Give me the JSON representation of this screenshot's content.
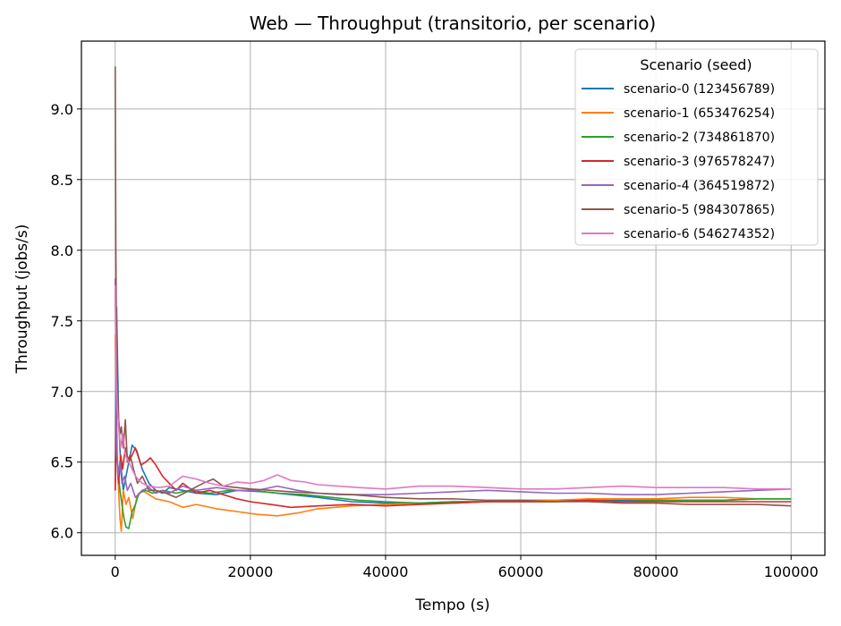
{
  "chart_data": {
    "type": "line",
    "title": "Web — Throughput (transitorio, per scenario)",
    "xlabel": "Tempo (s)",
    "ylabel": "Throughput (jobs/s)",
    "xlim": [
      -5000,
      105000
    ],
    "ylim": [
      5.84,
      9.48
    ],
    "xticks": [
      0,
      20000,
      40000,
      60000,
      80000,
      100000
    ],
    "yticks": [
      6.0,
      6.5,
      7.0,
      7.5,
      8.0,
      8.5,
      9.0
    ],
    "grid": true,
    "legend": {
      "title": "Scenario (seed)",
      "placement": "top-right"
    },
    "series": [
      {
        "name": "scenario-0 (123456789)",
        "color": "#1f77b4",
        "x": [
          0,
          200,
          500,
          800,
          1200,
          1800,
          2500,
          3200,
          4000,
          5000,
          6000,
          7000,
          8000,
          10000,
          12000,
          15000,
          18000,
          22000,
          26000,
          30000,
          35000,
          40000,
          45000,
          50000,
          55000,
          60000,
          65000,
          70000,
          75000,
          80000,
          85000,
          90000,
          95000,
          100000
        ],
        "y": [
          6.3,
          7.6,
          6.8,
          6.5,
          6.3,
          6.45,
          6.62,
          6.58,
          6.45,
          6.35,
          6.3,
          6.28,
          6.32,
          6.3,
          6.28,
          6.27,
          6.3,
          6.29,
          6.27,
          6.25,
          6.22,
          6.21,
          6.21,
          6.22,
          6.22,
          6.23,
          6.23,
          6.23,
          6.23,
          6.23,
          6.23,
          6.23,
          6.24,
          6.24
        ]
      },
      {
        "name": "scenario-1 (653476254)",
        "color": "#ff7f0e",
        "x": [
          0,
          150,
          300,
          500,
          700,
          900,
          1200,
          1600,
          2000,
          2600,
          3200,
          4000,
          5000,
          6000,
          8000,
          10000,
          12000,
          15000,
          18000,
          21000,
          24000,
          27000,
          30000,
          35000,
          40000,
          45000,
          50000,
          55000,
          60000,
          65000,
          70000,
          75000,
          80000,
          85000,
          90000,
          95000,
          100000
        ],
        "y": [
          7.4,
          7.0,
          6.5,
          6.3,
          6.1,
          6.01,
          6.3,
          6.2,
          6.25,
          6.1,
          6.25,
          6.3,
          6.27,
          6.24,
          6.22,
          6.18,
          6.2,
          6.17,
          6.15,
          6.13,
          6.12,
          6.14,
          6.17,
          6.19,
          6.2,
          6.21,
          6.21,
          6.22,
          6.23,
          6.23,
          6.24,
          6.24,
          6.24,
          6.25,
          6.25,
          6.24,
          6.24
        ]
      },
      {
        "name": "scenario-2 (734861870)",
        "color": "#2ca02c",
        "x": [
          0,
          200,
          400,
          700,
          1000,
          1300,
          1600,
          2000,
          2500,
          3000,
          3500,
          4500,
          5500,
          7000,
          9000,
          11000,
          14000,
          17000,
          20000,
          24000,
          28000,
          32000,
          36000,
          40000,
          45000,
          50000,
          55000,
          60000,
          65000,
          70000,
          75000,
          80000,
          85000,
          90000,
          95000,
          100000
        ],
        "y": [
          6.5,
          6.6,
          6.45,
          6.3,
          6.2,
          6.1,
          6.04,
          6.03,
          6.15,
          6.2,
          6.28,
          6.3,
          6.28,
          6.3,
          6.28,
          6.3,
          6.28,
          6.3,
          6.3,
          6.28,
          6.27,
          6.25,
          6.23,
          6.22,
          6.21,
          6.22,
          6.22,
          6.22,
          6.22,
          6.23,
          6.22,
          6.23,
          6.23,
          6.23,
          6.24,
          6.24
        ]
      },
      {
        "name": "scenario-3 (976578247)",
        "color": "#d62728",
        "x": [
          0,
          150,
          300,
          500,
          800,
          1100,
          1500,
          2000,
          2500,
          3000,
          3800,
          4500,
          5200,
          6000,
          7000,
          8000,
          9000,
          10000,
          12000,
          14000,
          16000,
          18000,
          20000,
          23000,
          26000,
          30000,
          35000,
          40000,
          45000,
          50000,
          55000,
          60000,
          65000,
          70000,
          75000,
          80000,
          85000,
          90000,
          95000,
          100000
        ],
        "y": [
          6.3,
          6.9,
          6.5,
          6.35,
          6.55,
          6.45,
          6.6,
          6.5,
          6.55,
          6.6,
          6.48,
          6.5,
          6.53,
          6.48,
          6.4,
          6.35,
          6.3,
          6.35,
          6.28,
          6.3,
          6.27,
          6.24,
          6.22,
          6.2,
          6.18,
          6.19,
          6.2,
          6.19,
          6.2,
          6.21,
          6.22,
          6.22,
          6.22,
          6.23,
          6.22,
          6.22,
          6.22,
          6.22,
          6.22,
          6.22
        ]
      },
      {
        "name": "scenario-4 (364519872)",
        "color": "#9467bd",
        "x": [
          0,
          200,
          400,
          700,
          1000,
          1400,
          1800,
          2300,
          3000,
          4000,
          5000,
          6000,
          7000,
          8000,
          10000,
          12000,
          15000,
          18000,
          21000,
          24000,
          27000,
          30000,
          33000,
          36000,
          40000,
          45000,
          50000,
          55000,
          60000,
          65000,
          70000,
          75000,
          80000,
          85000,
          90000,
          95000,
          100000
        ],
        "y": [
          7.8,
          6.6,
          6.4,
          6.5,
          6.35,
          6.4,
          6.3,
          6.35,
          6.25,
          6.3,
          6.32,
          6.28,
          6.3,
          6.28,
          6.33,
          6.3,
          6.32,
          6.3,
          6.3,
          6.33,
          6.3,
          6.28,
          6.27,
          6.27,
          6.27,
          6.28,
          6.29,
          6.3,
          6.29,
          6.28,
          6.28,
          6.27,
          6.27,
          6.28,
          6.29,
          6.3,
          6.31
        ]
      },
      {
        "name": "scenario-5 (984307865)",
        "color": "#8c564b",
        "x": [
          0,
          100,
          200,
          350,
          500,
          700,
          900,
          1200,
          1500,
          1800,
          2200,
          2700,
          3300,
          4000,
          5000,
          6000,
          7500,
          9000,
          11000,
          13000,
          14500,
          16000,
          18000,
          20000,
          23000,
          26000,
          30000,
          35000,
          40000,
          45000,
          50000,
          55000,
          60000,
          65000,
          70000,
          75000,
          80000,
          85000,
          90000,
          95000,
          100000
        ],
        "y": [
          9.3,
          8.0,
          7.3,
          7.0,
          6.8,
          6.7,
          6.75,
          6.6,
          6.8,
          6.5,
          6.55,
          6.45,
          6.35,
          6.4,
          6.3,
          6.3,
          6.28,
          6.25,
          6.3,
          6.35,
          6.38,
          6.33,
          6.32,
          6.31,
          6.3,
          6.29,
          6.28,
          6.27,
          6.25,
          6.24,
          6.24,
          6.23,
          6.23,
          6.22,
          6.22,
          6.21,
          6.21,
          6.2,
          6.2,
          6.2,
          6.19
        ]
      },
      {
        "name": "scenario-6 (546274352)",
        "color": "#e377c2",
        "x": [
          0,
          150,
          300,
          500,
          800,
          1100,
          1500,
          2000,
          2500,
          3000,
          4000,
          5000,
          6500,
          8000,
          10000,
          12000,
          14000,
          16000,
          18000,
          20000,
          22000,
          24000,
          26000,
          28000,
          30000,
          33000,
          36000,
          40000,
          45000,
          50000,
          55000,
          60000,
          65000,
          70000,
          75000,
          80000,
          85000,
          90000,
          95000,
          100000
        ],
        "y": [
          7.75,
          7.1,
          6.9,
          6.75,
          6.6,
          6.7,
          6.55,
          6.5,
          6.45,
          6.4,
          6.35,
          6.33,
          6.32,
          6.33,
          6.4,
          6.38,
          6.35,
          6.33,
          6.36,
          6.35,
          6.37,
          6.41,
          6.37,
          6.36,
          6.34,
          6.33,
          6.32,
          6.31,
          6.33,
          6.33,
          6.32,
          6.31,
          6.31,
          6.32,
          6.33,
          6.32,
          6.32,
          6.32,
          6.31,
          6.31
        ]
      }
    ]
  }
}
